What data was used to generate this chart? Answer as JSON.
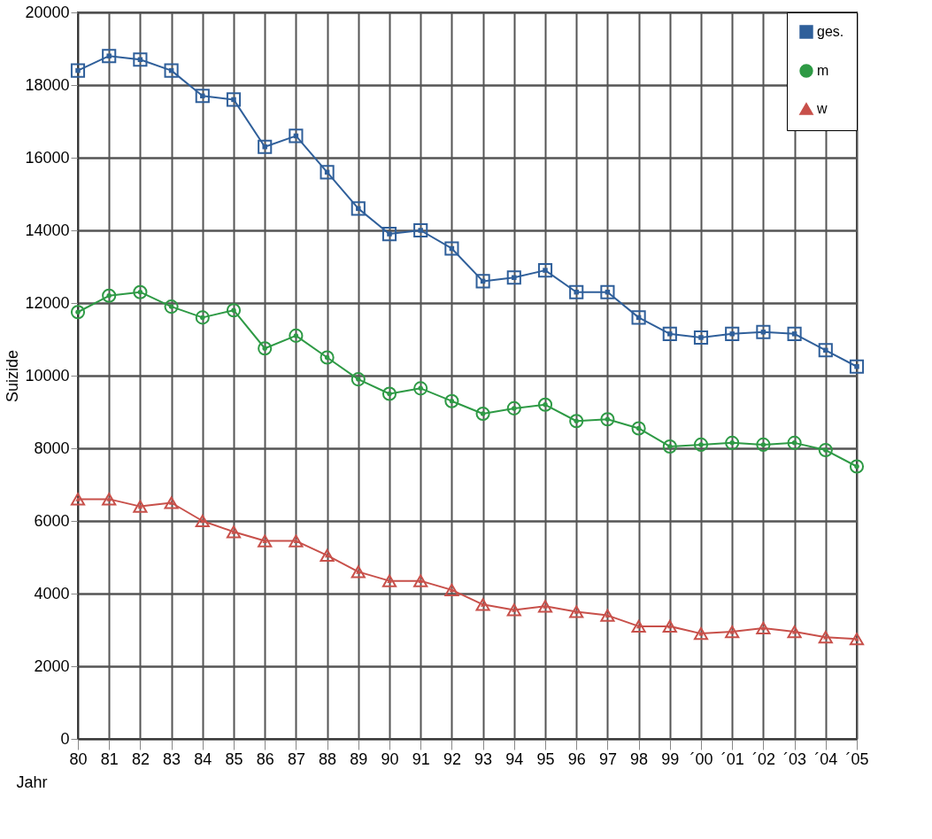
{
  "chart_data": {
    "type": "line",
    "xlabel": "Jahr",
    "ylabel": "Suizide",
    "categories": [
      "80",
      "81",
      "82",
      "83",
      "84",
      "85",
      "86",
      "87",
      "88",
      "89",
      "90",
      "91",
      "92",
      "93",
      "94",
      "95",
      "96",
      "97",
      "98",
      "99",
      "´00",
      "´01",
      "´02",
      "´03",
      "´04",
      "´05"
    ],
    "series": [
      {
        "name": "ges.",
        "color": "#2f5f9a",
        "marker": "square",
        "values": [
          18400,
          18800,
          18700,
          18400,
          17700,
          17600,
          16300,
          16600,
          15600,
          14600,
          13900,
          14000,
          13500,
          12600,
          12700,
          12900,
          12300,
          12300,
          11600,
          11150,
          11050,
          11150,
          11200,
          11150,
          10700,
          10250
        ]
      },
      {
        "name": "m",
        "color": "#2e9a45",
        "marker": "circle",
        "values": [
          11750,
          12200,
          12300,
          11900,
          11600,
          11800,
          10750,
          11100,
          10500,
          9900,
          9500,
          9650,
          9300,
          8950,
          9100,
          9200,
          8750,
          8800,
          8550,
          8050,
          8100,
          8150,
          8100,
          8150,
          7950,
          7500
        ]
      },
      {
        "name": "w",
        "color": "#c8504a",
        "marker": "triangle",
        "values": [
          6600,
          6600,
          6400,
          6500,
          6000,
          5700,
          5450,
          5450,
          5050,
          4600,
          4350,
          4350,
          4100,
          3700,
          3550,
          3650,
          3500,
          3400,
          3100,
          3100,
          2900,
          2950,
          3050,
          2950,
          2800,
          2750
        ]
      }
    ],
    "ylim": [
      0,
      20000
    ],
    "yticks": [
      0,
      2000,
      4000,
      6000,
      8000,
      10000,
      12000,
      14000,
      16000,
      18000,
      20000
    ],
    "grid": true,
    "legend": "top right",
    "line_style": "solid"
  }
}
